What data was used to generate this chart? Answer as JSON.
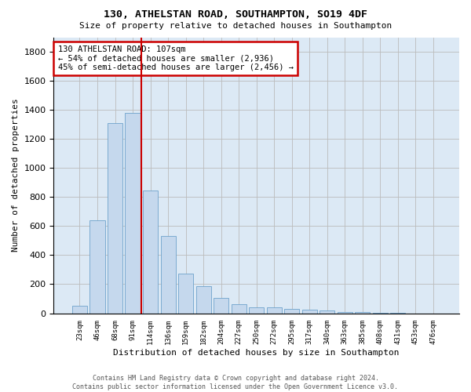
{
  "title": "130, ATHELSTAN ROAD, SOUTHAMPTON, SO19 4DF",
  "subtitle": "Size of property relative to detached houses in Southampton",
  "xlabel": "Distribution of detached houses by size in Southampton",
  "ylabel": "Number of detached properties",
  "bar_color": "#c5d8ed",
  "bar_edge_color": "#6ea3cc",
  "grid_color": "#bbbbbb",
  "bg_color": "#dce9f5",
  "vline_color": "#cc0000",
  "vline_x_index": 4,
  "annotation_text": "130 ATHELSTAN ROAD: 107sqm\n← 54% of detached houses are smaller (2,936)\n45% of semi-detached houses are larger (2,456) →",
  "annotation_box_color": "#cc0000",
  "categories": [
    "23sqm",
    "46sqm",
    "68sqm",
    "91sqm",
    "114sqm",
    "136sqm",
    "159sqm",
    "182sqm",
    "204sqm",
    "227sqm",
    "250sqm",
    "272sqm",
    "295sqm",
    "317sqm",
    "340sqm",
    "363sqm",
    "385sqm",
    "408sqm",
    "431sqm",
    "453sqm",
    "476sqm"
  ],
  "values": [
    50,
    640,
    1310,
    1380,
    845,
    530,
    275,
    185,
    105,
    65,
    40,
    40,
    30,
    25,
    20,
    8,
    8,
    5,
    5,
    0,
    0
  ],
  "ylim": [
    0,
    1900
  ],
  "yticks": [
    0,
    200,
    400,
    600,
    800,
    1000,
    1200,
    1400,
    1600,
    1800
  ],
  "footer_text": "Contains HM Land Registry data © Crown copyright and database right 2024.\nContains public sector information licensed under the Open Government Licence v3.0.",
  "figsize": [
    6.0,
    5.0
  ],
  "dpi": 100
}
